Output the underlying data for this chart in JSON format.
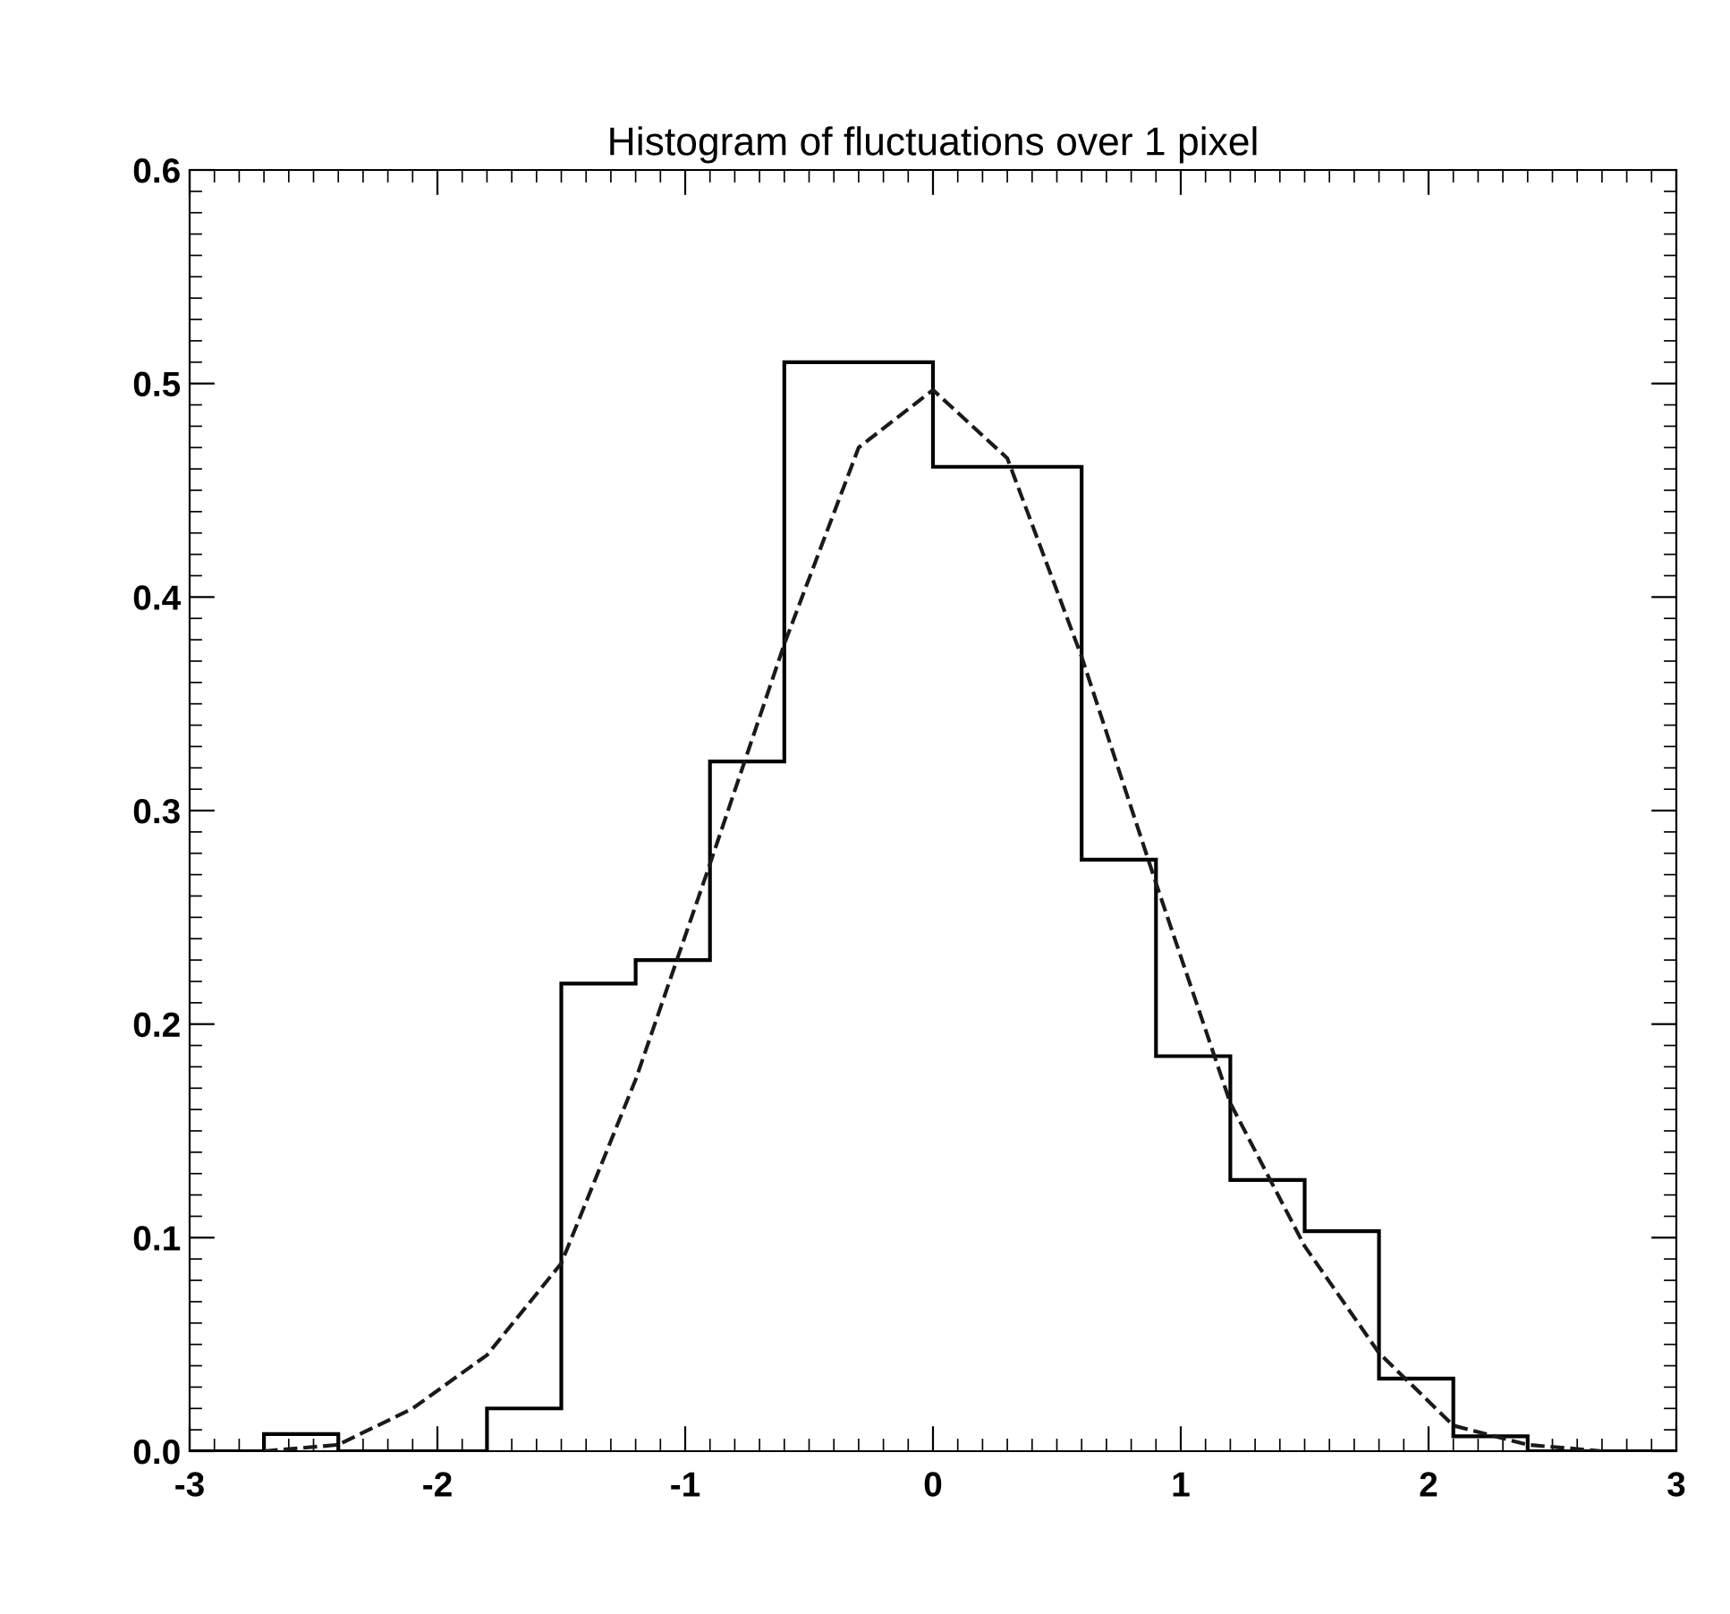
{
  "chart_data": {
    "type": "histogram",
    "title": "Histogram of fluctuations over 1 pixel",
    "bins": [
      -3.0,
      -2.7,
      -2.4,
      -2.1,
      -1.8,
      -1.5,
      -1.2,
      -0.9,
      -0.6,
      -0.3,
      0.0,
      0.3,
      0.6,
      0.9,
      1.2,
      1.5,
      1.8,
      2.1,
      2.4,
      2.7,
      3.0
    ],
    "values": [
      0.0,
      0.008,
      0.0,
      0.0,
      0.02,
      0.219,
      0.23,
      0.323,
      0.51,
      0.51,
      0.461,
      0.461,
      0.277,
      0.185,
      0.127,
      0.103,
      0.034,
      0.007,
      0.0,
      0.0
    ],
    "color": "#000000",
    "series": [
      {
        "type": "line",
        "color": "#1a1a1a",
        "line_style": "dashed",
        "x": [
          -2.7,
          -2.4,
          -2.1,
          -1.8,
          -1.5,
          -1.2,
          -0.9,
          -0.6,
          -0.3,
          0.0,
          0.3,
          0.6,
          0.9,
          1.2,
          1.5,
          1.8,
          2.1,
          2.4,
          2.7
        ],
        "values": [
          0.0,
          0.003,
          0.02,
          0.045,
          0.088,
          0.174,
          0.275,
          0.378,
          0.47,
          0.497,
          0.465,
          0.372,
          0.266,
          0.163,
          0.096,
          0.046,
          0.012,
          0.003,
          0.0
        ]
      }
    ],
    "xlim": [
      -3,
      3
    ],
    "xticks": [
      -3,
      -2,
      -1,
      0,
      1,
      2,
      3
    ],
    "ylim": [
      0.0,
      0.6
    ],
    "yticks": [
      {
        "value": 0.0,
        "label": "0.0"
      },
      0.1,
      0.2,
      0.3,
      0.4,
      0.5,
      0.6
    ],
    "grid": false,
    "legend": false
  }
}
